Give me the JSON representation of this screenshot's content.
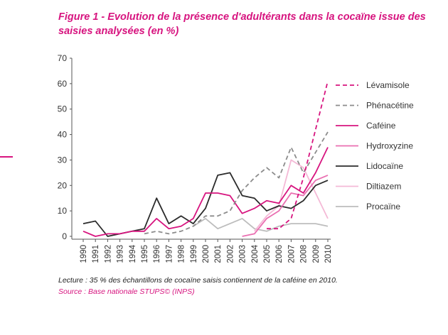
{
  "figure": {
    "title": "Figure 1 - Evolution de la présence d'adultérants dans la cocaïne issue des saisies analysées (en %)",
    "note": "Lecture : 35 % des échantillons de cocaïne saisis contiennent de la caféine en 2010.",
    "source": "Source : Base nationale STUPS© (INPS)",
    "accent_color": "#d7147f"
  },
  "chart_data": {
    "type": "line",
    "title": "Figure 1 - Evolution de la présence d'adultérants dans la cocaïne issue des saisies analysées (en %)",
    "xlabel": "",
    "ylabel": "",
    "ylim": [
      0,
      70
    ],
    "yticks": [
      0,
      10,
      20,
      30,
      40,
      50,
      60,
      70
    ],
    "grid": false,
    "legend_position": "right",
    "categories": [
      "1990",
      "1991",
      "1992",
      "1993",
      "1994",
      "1995",
      "1996",
      "1997",
      "1998",
      "1999",
      "2000",
      "2001",
      "2002",
      "2003",
      "2004",
      "2005",
      "2006",
      "2007",
      "2008",
      "2009",
      "2010"
    ],
    "series": [
      {
        "name": "Lévamisole",
        "color": "#d7147f",
        "dash": "dashed",
        "values": [
          null,
          null,
          null,
          null,
          null,
          null,
          null,
          null,
          null,
          null,
          null,
          null,
          null,
          null,
          null,
          3,
          3,
          7,
          23,
          42,
          61
        ]
      },
      {
        "name": "Phénacétine",
        "color": "#8c8c8c",
        "dash": "dashed",
        "values": [
          null,
          null,
          null,
          null,
          null,
          1,
          2,
          1,
          2,
          4,
          8,
          8,
          10,
          18,
          23,
          27,
          23,
          35,
          25,
          33,
          41
        ]
      },
      {
        "name": "Caféine",
        "color": "#d7147f",
        "dash": "solid",
        "values": [
          2,
          0,
          1,
          1,
          2,
          2,
          7,
          3,
          4,
          7,
          17,
          17,
          16,
          9,
          11,
          14,
          13,
          20,
          17,
          25,
          35
        ]
      },
      {
        "name": "Hydroxyzine",
        "color": "#ea6fb1",
        "dash": "solid",
        "values": [
          null,
          null,
          null,
          null,
          null,
          null,
          null,
          null,
          null,
          null,
          null,
          null,
          null,
          0,
          1,
          7,
          10,
          17,
          16,
          22,
          24
        ]
      },
      {
        "name": "Lidocaïne",
        "color": "#2b2b2b",
        "dash": "solid",
        "values": [
          5,
          6,
          0,
          1,
          2,
          3,
          15,
          5,
          8,
          5,
          11,
          24,
          25,
          16,
          15,
          10,
          12,
          11,
          14,
          20,
          22
        ]
      },
      {
        "name": "Diltiazem",
        "color": "#f4b9d6",
        "dash": "solid",
        "values": [
          null,
          null,
          null,
          null,
          null,
          null,
          null,
          null,
          null,
          null,
          null,
          null,
          null,
          null,
          2,
          8,
          12,
          30,
          27,
          17,
          7
        ]
      },
      {
        "name": "Procaïne",
        "color": "#bdbdbd",
        "dash": "solid",
        "values": [
          null,
          null,
          null,
          null,
          null,
          null,
          null,
          null,
          null,
          4,
          7,
          3,
          5,
          7,
          3,
          2,
          4,
          5,
          5,
          5,
          4
        ]
      }
    ]
  }
}
